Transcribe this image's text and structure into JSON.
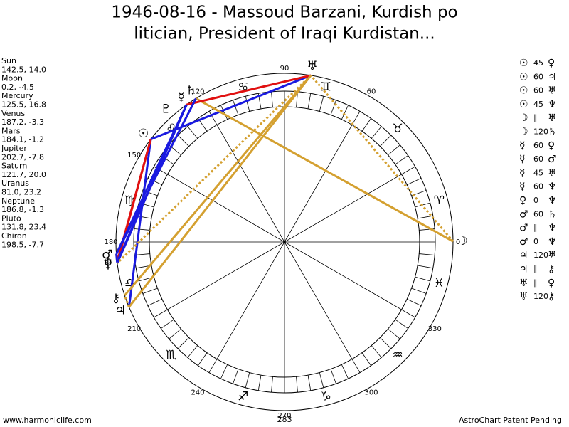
{
  "header": {
    "title_lines": [
      "1946-08-16 - Massoud Barzani, Kurdish po",
      "litician, President of Iraqi Kurdistan..."
    ]
  },
  "planets": [
    {
      "name": "Sun",
      "coords": "142.5, 14.0",
      "glyph": "☉"
    },
    {
      "name": "Moon",
      "coords": "0.2, -4.5",
      "glyph": "☽"
    },
    {
      "name": "Mercury",
      "coords": "125.5, 16.8",
      "glyph": "☿"
    },
    {
      "name": "Venus",
      "coords": "187.2, -3.3",
      "glyph": "♀"
    },
    {
      "name": "Mars",
      "coords": "184.1, -1.2",
      "glyph": "♂"
    },
    {
      "name": "Jupiter",
      "coords": "202.7, -7.8",
      "glyph": "♃"
    },
    {
      "name": "Saturn",
      "coords": "121.7, 20.0",
      "glyph": "♄"
    },
    {
      "name": "Uranus",
      "coords": "81.0, 23.2",
      "glyph": "♅"
    },
    {
      "name": "Neptune",
      "coords": "186.8, -1.3",
      "glyph": "♆"
    },
    {
      "name": "Pluto",
      "coords": "131.8, 23.4",
      "glyph": "♇"
    },
    {
      "name": "Chiron",
      "coords": "198.5, -7.7",
      "glyph": "⚷"
    }
  ],
  "aspects": [
    {
      "p1": "☉",
      "aspect": "45",
      "p2": "♀",
      "color": "#e01010",
      "dotted": false
    },
    {
      "p1": "☉",
      "aspect": "60",
      "p2": "♃",
      "color": "#1a1ae0",
      "dotted": false
    },
    {
      "p1": "☉",
      "aspect": "60",
      "p2": "♅",
      "color": "#1a1ae0",
      "dotted": false
    },
    {
      "p1": "☉",
      "aspect": "45",
      "p2": "♆",
      "color": "#e01010",
      "dotted": false
    },
    {
      "p1": "☽",
      "aspect": "∥",
      "p2": "♅",
      "color": "#d4a030",
      "dotted": true
    },
    {
      "p1": "☽",
      "aspect": "120",
      "p2": "♄",
      "color": "#d4a030",
      "dotted": false
    },
    {
      "p1": "☿",
      "aspect": "60",
      "p2": "♀",
      "color": "#1a1ae0",
      "dotted": false
    },
    {
      "p1": "☿",
      "aspect": "60",
      "p2": "♂",
      "color": "#1a1ae0",
      "dotted": false
    },
    {
      "p1": "☿",
      "aspect": "45",
      "p2": "♅",
      "color": "#e01010",
      "dotted": false
    },
    {
      "p1": "☿",
      "aspect": "60",
      "p2": "♆",
      "color": "#1a1ae0",
      "dotted": false
    },
    {
      "p1": "♀",
      "aspect": "0",
      "p2": "♆",
      "color": "#1a1ae0",
      "dotted": false
    },
    {
      "p1": "♂",
      "aspect": "60",
      "p2": "♄",
      "color": "#1a1ae0",
      "dotted": false
    },
    {
      "p1": "♂",
      "aspect": "∥",
      "p2": "♆",
      "color": "#d4a030",
      "dotted": true
    },
    {
      "p1": "♂",
      "aspect": "0",
      "p2": "♆",
      "color": "#1a1ae0",
      "dotted": false
    },
    {
      "p1": "♃",
      "aspect": "120",
      "p2": "♅",
      "color": "#d4a030",
      "dotted": false
    },
    {
      "p1": "♃",
      "aspect": "∥",
      "p2": "⚷",
      "color": "#d4a030",
      "dotted": true
    },
    {
      "p1": "♅",
      "aspect": "∥",
      "p2": "♀",
      "color": "#d4a030",
      "dotted": true
    },
    {
      "p1": "♅",
      "aspect": "120",
      "p2": "⚷",
      "color": "#d4a030",
      "dotted": false
    }
  ],
  "signs": [
    "♈",
    "♉",
    "♊",
    "♋",
    "♌",
    "♍",
    "♎",
    "♏",
    "♐",
    "♑",
    "♒",
    "♓"
  ],
  "degree_labels": [
    0,
    60,
    90,
    120,
    150,
    180,
    210,
    240,
    270,
    300,
    330
  ],
  "bottom_label": "283",
  "footer": {
    "left": "www.harmoniclife.com",
    "right": "AstroChart Patent Pending"
  }
}
